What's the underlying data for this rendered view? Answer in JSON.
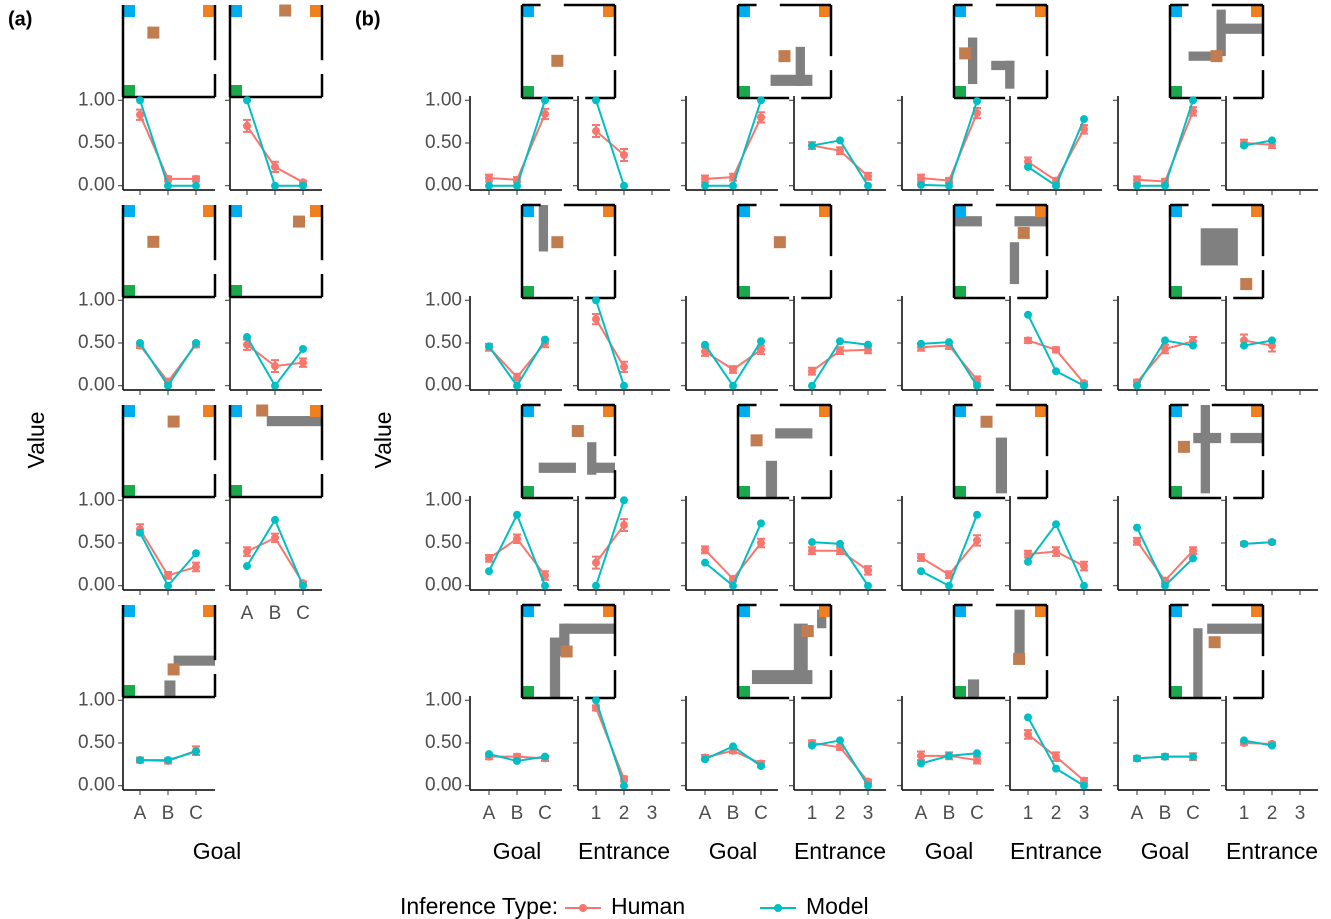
{
  "chart_data": {
    "type": "line",
    "panel_labels": [
      "(a)",
      "(b)"
    ],
    "ylabel": "Value",
    "legend_title": "Inference Type:",
    "series": [
      {
        "name": "Human",
        "color": "#F8766D"
      },
      {
        "name": "Model",
        "color": "#00BFC4"
      }
    ],
    "ylim": [
      -0.05,
      1.05
    ],
    "yticks": [
      {
        "value": 0,
        "label": "0.00"
      },
      {
        "value": 0.5,
        "label": "0.50"
      },
      {
        "value": 1,
        "label": "1.00"
      }
    ],
    "goal_label": "Goal",
    "entrance_label": "Entrance",
    "goal_categories": [
      "A",
      "B",
      "C"
    ],
    "entrance_categories": [
      "1",
      "2",
      "3"
    ],
    "panels_a": [
      {
        "goal": [
          [
            0.83,
            0.08,
            0.08
          ],
          [
            1.0,
            0.0,
            0.0
          ]
        ],
        "goal_error": [
          0.06,
          0.03,
          0.03
        ]
      },
      {
        "goal": [
          [
            0.7,
            0.22,
            0.04
          ],
          [
            1.0,
            0.0,
            0.0
          ]
        ],
        "goal_error": [
          0.07,
          0.06,
          0.02
        ]
      },
      {
        "goal": [
          [
            0.47,
            0.05,
            0.48
          ],
          [
            0.5,
            0.0,
            0.5
          ]
        ],
        "goal_error": [
          0.03,
          0.02,
          0.03
        ]
      },
      {
        "goal": [
          [
            0.48,
            0.23,
            0.27
          ],
          [
            0.57,
            0.0,
            0.43
          ]
        ],
        "goal_error": [
          0.06,
          0.07,
          0.05
        ]
      },
      {
        "goal": [
          [
            0.66,
            0.12,
            0.22
          ],
          [
            0.62,
            0.0,
            0.38
          ]
        ],
        "goal_error": [
          0.06,
          0.04,
          0.05
        ]
      },
      {
        "goal": [
          [
            0.4,
            0.56,
            0.03
          ],
          [
            0.23,
            0.77,
            0.0
          ]
        ],
        "goal_error": [
          0.05,
          0.05,
          0.02
        ]
      },
      {
        "goal": [
          [
            0.3,
            0.29,
            0.41
          ],
          [
            0.3,
            0.3,
            0.4
          ]
        ],
        "goal_error": [
          0.03,
          0.03,
          0.05
        ]
      }
    ],
    "panels_b": [
      {
        "goal": [
          [
            0.09,
            0.07,
            0.84
          ],
          [
            0.0,
            0.0,
            1.0
          ]
        ],
        "goal_error": [
          0.04,
          0.03,
          0.06
        ],
        "entrance": [
          [
            0.64,
            0.36,
            null
          ],
          [
            1.0,
            0.0,
            null
          ]
        ],
        "entrance_error": [
          0.07,
          0.07,
          null
        ]
      },
      {
        "goal": [
          [
            0.08,
            0.1,
            0.8
          ],
          [
            0.0,
            0.0,
            1.0
          ]
        ],
        "goal_error": [
          0.04,
          0.04,
          0.06
        ],
        "entrance": [
          [
            0.47,
            0.41,
            0.11
          ],
          [
            0.47,
            0.53,
            0.0
          ]
        ],
        "entrance_error": [
          0.04,
          0.04,
          0.04
        ]
      },
      {
        "goal": [
          [
            0.09,
            0.06,
            0.85
          ],
          [
            0.01,
            0.0,
            0.99
          ]
        ],
        "goal_error": [
          0.04,
          0.03,
          0.06
        ],
        "entrance": [
          [
            0.28,
            0.06,
            0.66
          ],
          [
            0.22,
            0.0,
            0.78
          ]
        ],
        "entrance_error": [
          0.05,
          0.03,
          0.05
        ]
      },
      {
        "goal": [
          [
            0.07,
            0.05,
            0.87
          ],
          [
            0.0,
            0.0,
            1.0
          ]
        ],
        "goal_error": [
          0.04,
          0.03,
          0.05
        ],
        "entrance": [
          [
            0.5,
            0.48,
            null
          ],
          [
            0.47,
            0.53,
            null
          ]
        ],
        "entrance_error": [
          0.04,
          0.04,
          null
        ]
      },
      {
        "goal": [
          [
            0.45,
            0.1,
            0.5
          ],
          [
            0.46,
            0.0,
            0.54
          ]
        ],
        "goal_error": [
          0.04,
          0.04,
          0.05
        ],
        "entrance": [
          [
            0.78,
            0.22,
            null
          ],
          [
            1.0,
            0.0,
            null
          ]
        ],
        "entrance_error": [
          0.06,
          0.06,
          null
        ]
      },
      {
        "goal": [
          [
            0.4,
            0.19,
            0.42
          ],
          [
            0.48,
            0.0,
            0.52
          ]
        ],
        "goal_error": [
          0.05,
          0.04,
          0.05
        ],
        "entrance": [
          [
            0.17,
            0.41,
            0.42
          ],
          [
            0.0,
            0.52,
            0.48
          ]
        ],
        "entrance_error": [
          0.04,
          0.04,
          0.04
        ]
      },
      {
        "goal": [
          [
            0.45,
            0.47,
            0.07
          ],
          [
            0.49,
            0.51,
            0.0
          ]
        ],
        "goal_error": [
          0.04,
          0.04,
          0.04
        ],
        "entrance": [
          [
            0.53,
            0.42,
            0.03
          ],
          [
            0.83,
            0.17,
            0.0
          ]
        ],
        "entrance_error": [
          0.03,
          0.03,
          0.02
        ]
      },
      {
        "goal": [
          [
            0.04,
            0.43,
            0.52
          ],
          [
            0.0,
            0.53,
            0.47
          ]
        ],
        "goal_error": [
          0.03,
          0.05,
          0.05
        ],
        "entrance": [
          [
            0.53,
            0.47,
            null
          ],
          [
            0.47,
            0.53,
            null
          ]
        ],
        "entrance_error": [
          0.07,
          0.07,
          null
        ]
      },
      {
        "goal": [
          [
            0.32,
            0.55,
            0.12
          ],
          [
            0.17,
            0.83,
            0.0
          ]
        ],
        "goal_error": [
          0.04,
          0.05,
          0.05
        ],
        "entrance": [
          [
            0.27,
            0.71,
            null
          ],
          [
            0.0,
            1.0,
            null
          ]
        ],
        "entrance_error": [
          0.07,
          0.07,
          null
        ]
      },
      {
        "goal": [
          [
            0.42,
            0.08,
            0.5
          ],
          [
            0.27,
            0.0,
            0.73
          ]
        ],
        "goal_error": [
          0.04,
          0.03,
          0.05
        ],
        "entrance": [
          [
            0.41,
            0.41,
            0.18
          ],
          [
            0.51,
            0.49,
            0.0
          ]
        ],
        "entrance_error": [
          0.04,
          0.04,
          0.05
        ]
      },
      {
        "goal": [
          [
            0.33,
            0.13,
            0.53
          ],
          [
            0.17,
            0.0,
            0.83
          ]
        ],
        "goal_error": [
          0.04,
          0.04,
          0.06
        ],
        "entrance": [
          [
            0.37,
            0.4,
            0.23
          ],
          [
            0.28,
            0.72,
            0.0
          ]
        ],
        "entrance_error": [
          0.04,
          0.05,
          0.05
        ]
      },
      {
        "goal": [
          [
            0.52,
            0.06,
            0.41
          ],
          [
            0.68,
            0.0,
            0.32
          ]
        ],
        "goal_error": [
          0.04,
          0.03,
          0.04
        ],
        "entrance": [
          [
            0.49,
            0.51,
            null
          ],
          [
            0.49,
            0.51,
            null
          ]
        ],
        "entrance_error": [
          0.02,
          0.02,
          null
        ]
      },
      {
        "goal": [
          [
            0.34,
            0.34,
            0.32
          ],
          [
            0.37,
            0.29,
            0.34
          ]
        ],
        "goal_error": [
          0.03,
          0.03,
          0.03
        ],
        "entrance": [
          [
            0.91,
            0.08,
            null
          ],
          [
            1.0,
            0.0,
            null
          ]
        ],
        "entrance_error": [
          0.03,
          0.03,
          null
        ]
      },
      {
        "goal": [
          [
            0.33,
            0.41,
            0.26
          ],
          [
            0.31,
            0.46,
            0.23
          ]
        ],
        "goal_error": [
          0.03,
          0.03,
          0.03
        ],
        "entrance": [
          [
            0.5,
            0.45,
            0.05
          ],
          [
            0.47,
            0.53,
            0.0
          ]
        ],
        "entrance_error": [
          0.03,
          0.03,
          0.02
        ]
      },
      {
        "goal": [
          [
            0.35,
            0.35,
            0.3
          ],
          [
            0.26,
            0.35,
            0.38
          ]
        ],
        "goal_error": [
          0.05,
          0.04,
          0.04
        ],
        "entrance": [
          [
            0.6,
            0.34,
            0.06
          ],
          [
            0.8,
            0.2,
            0.0
          ]
        ],
        "entrance_error": [
          0.05,
          0.05,
          0.03
        ]
      },
      {
        "goal": [
          [
            0.32,
            0.34,
            0.34
          ],
          [
            0.32,
            0.34,
            0.34
          ]
        ],
        "goal_error": [
          0.03,
          0.03,
          0.04
        ],
        "entrance": [
          [
            0.5,
            0.49,
            null
          ],
          [
            0.53,
            0.47,
            null
          ]
        ],
        "entrance_error": [
          0.02,
          0.02,
          null
        ]
      }
    ]
  }
}
